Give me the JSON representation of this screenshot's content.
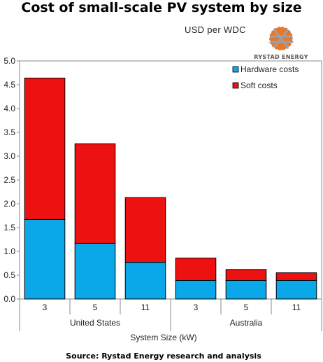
{
  "chart_data": {
    "type": "bar",
    "stacked": true,
    "title": "Cost of small-scale PV system by size",
    "subtitle": "USD per WDC",
    "xlabel": "System Size (kW)",
    "ylabel": "",
    "source": "Source: Rystad Energy research and analysis",
    "logo_text": "RYSTAD ENERGY",
    "ylim": [
      0,
      5
    ],
    "yticks": [
      "0.0",
      "0.5",
      "1.0",
      "1.5",
      "2.0",
      "2.5",
      "3.0",
      "3.5",
      "4.0",
      "4.5",
      "5.0"
    ],
    "categories": [
      "3",
      "5",
      "11",
      "3",
      "5",
      "11"
    ],
    "groups": [
      {
        "label": "United States",
        "count": 3
      },
      {
        "label": "Australia",
        "count": 3
      }
    ],
    "legend_position": "top-right",
    "series": [
      {
        "name": "Hardware costs",
        "color": "#0aa8e8",
        "values": [
          1.67,
          1.17,
          0.77,
          0.39,
          0.39,
          0.39
        ]
      },
      {
        "name": "Soft costs",
        "color": "#ee1111",
        "values": [
          2.97,
          2.09,
          1.36,
          0.47,
          0.23,
          0.16
        ]
      }
    ]
  }
}
